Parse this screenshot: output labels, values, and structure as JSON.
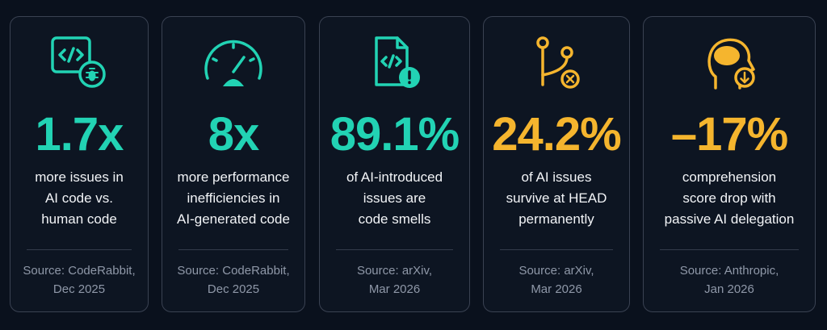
{
  "cards": [
    {
      "stat": "1.7x",
      "color": "#22d3b4",
      "description": [
        "more issues in",
        "AI code vs.",
        "human code"
      ],
      "source": [
        "Source: CodeRabbit,",
        "Dec 2025"
      ]
    },
    {
      "stat": "8x",
      "color": "#22d3b4",
      "description": [
        "more performance",
        "inefficiencies in",
        "AI-generated code"
      ],
      "source": [
        "Source: CodeRabbit,",
        "Dec 2025"
      ]
    },
    {
      "stat": "89.1%",
      "color": "#22d3b4",
      "description": [
        "of AI-introduced",
        "issues are",
        "code smells"
      ],
      "source": [
        "Source: arXiv,",
        "Mar 2026"
      ]
    },
    {
      "stat": "24.2%",
      "color": "#f5b52e",
      "description": [
        "of AI issues",
        "survive at HEAD",
        "permanently"
      ],
      "source": [
        "Source: arXiv,",
        "Mar 2026"
      ]
    },
    {
      "stat": "–17%",
      "color": "#f5b52e",
      "description": [
        "comprehension",
        "score drop with",
        "passive AI delegation"
      ],
      "source": [
        "Source: Anthropic,",
        "Jan 2026"
      ]
    }
  ]
}
